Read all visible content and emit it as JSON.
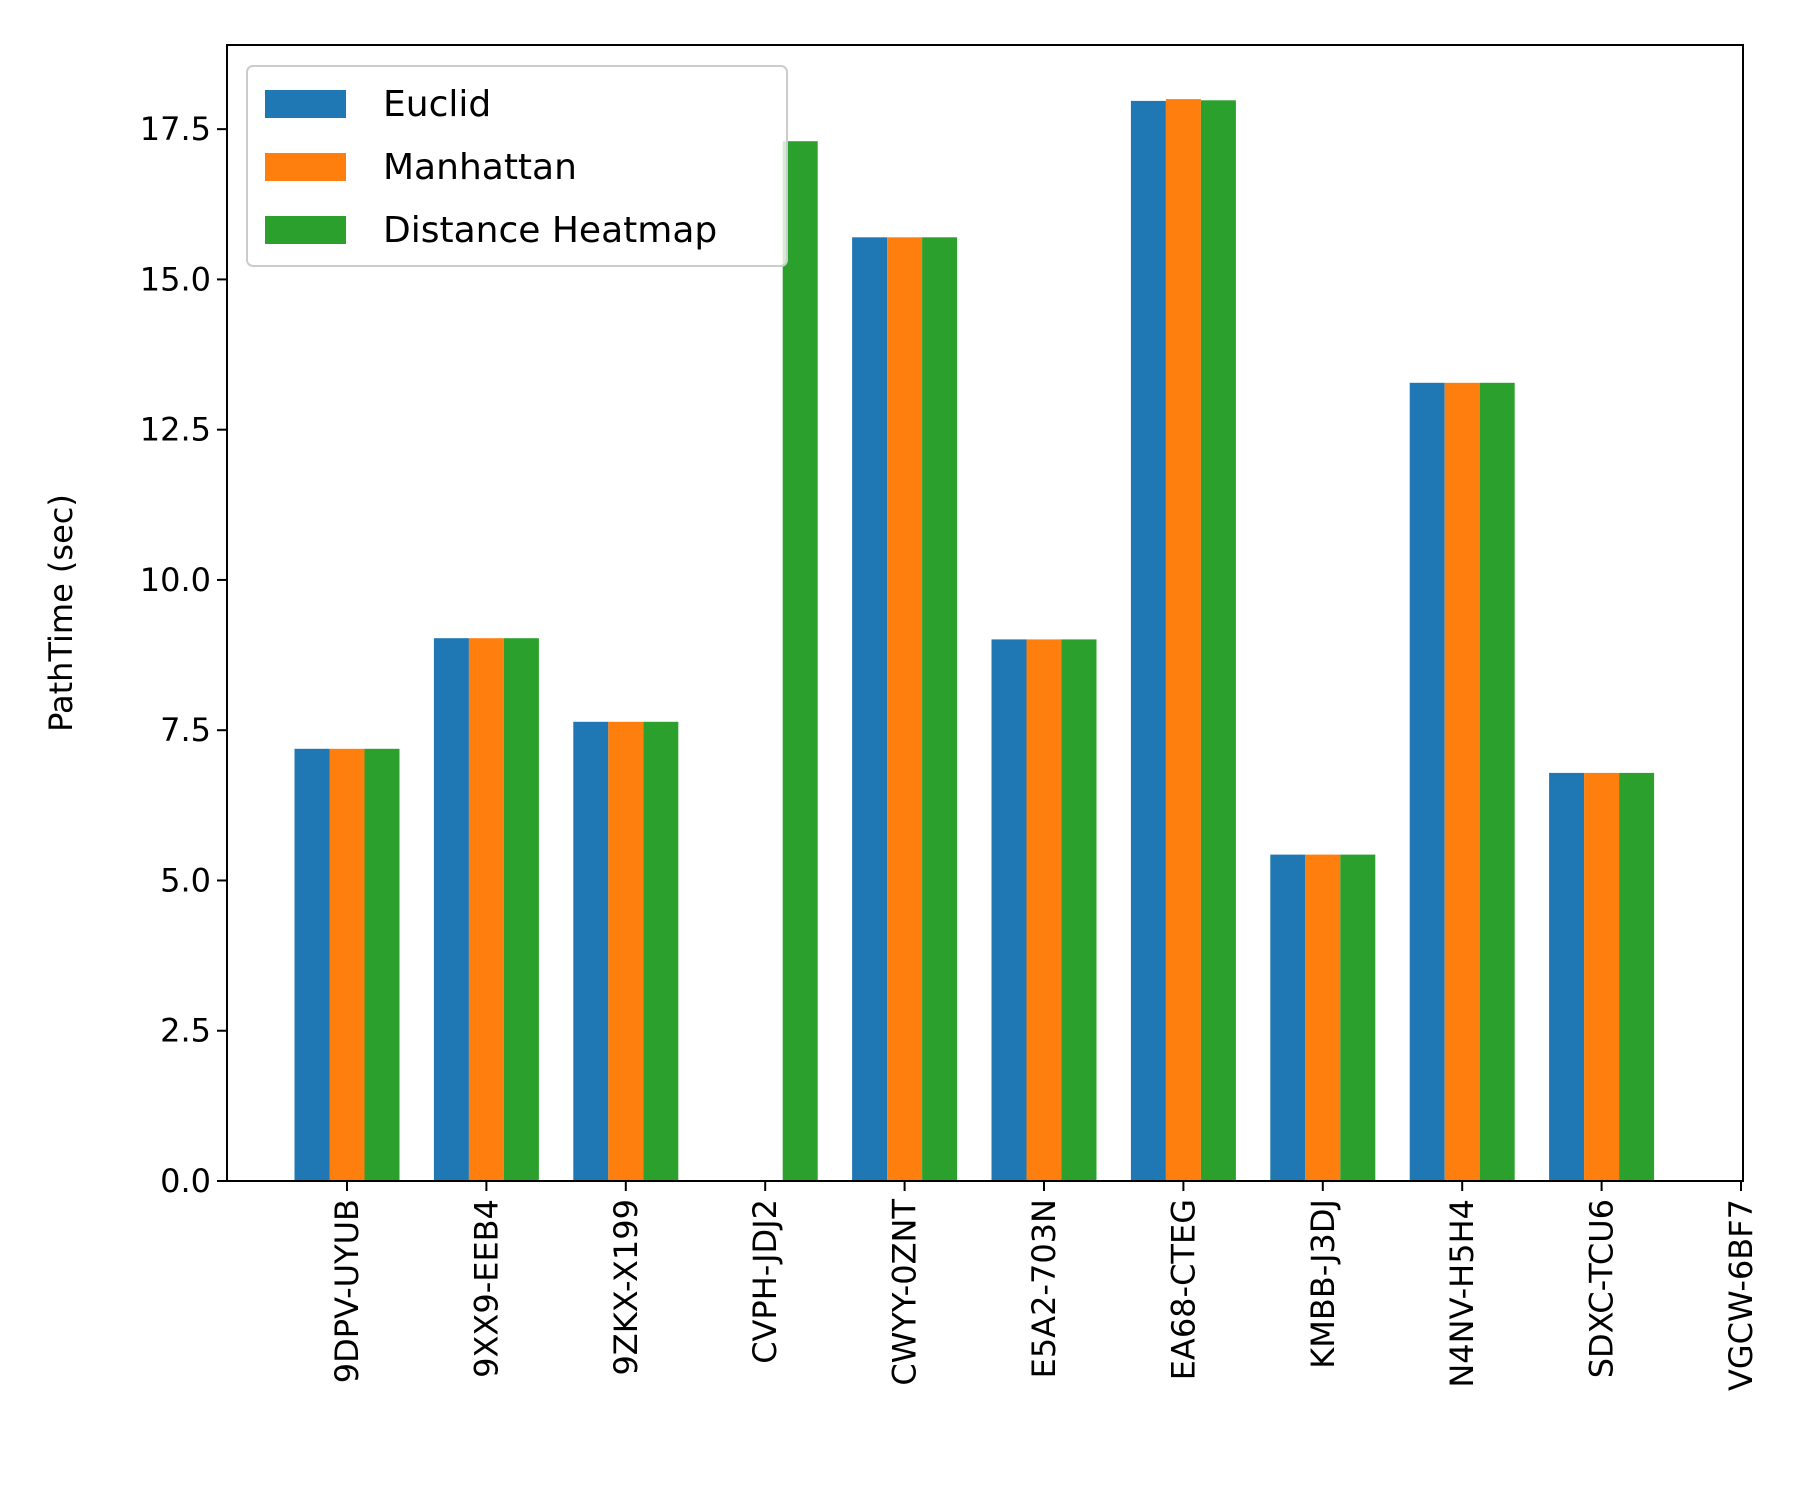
{
  "chart_data": {
    "type": "bar",
    "categories": [
      "9DPV-UYUB",
      "9XX9-EEB4",
      "9ZKX-X199",
      "CVPH-JDJ2",
      "CWYY-0ZNT",
      "E5A2-703N",
      "EA68-CTEG",
      "KMBB-J3DJ",
      "N4NV-H5H4",
      "SDXC-TCU6",
      "VGCW-6BF7"
    ],
    "series": [
      {
        "name": "Euclid",
        "color": "#1f77b4",
        "values": [
          7.19,
          9.03,
          7.64,
          0,
          15.7,
          9.01,
          17.97,
          5.43,
          13.28,
          6.79,
          0
        ]
      },
      {
        "name": "Manhattan",
        "color": "#ff7f0e",
        "values": [
          7.19,
          9.03,
          7.64,
          0,
          15.7,
          9.01,
          18.0,
          5.43,
          13.28,
          6.79,
          0
        ]
      },
      {
        "name": "Distance Heatmap",
        "color": "#2ca02c",
        "values": [
          7.19,
          9.03,
          7.64,
          17.3,
          15.7,
          9.01,
          17.98,
          5.43,
          13.28,
          6.79,
          0
        ]
      }
    ],
    "ylabel": "PathTime (sec)",
    "xlabel": "",
    "title": "",
    "ylim": [
      0,
      18.9
    ],
    "yticks": [
      "0.0",
      "2.5",
      "5.0",
      "7.5",
      "10.0",
      "12.5",
      "15.0",
      "17.5"
    ],
    "legend_position": "top-left",
    "grid": false
  }
}
